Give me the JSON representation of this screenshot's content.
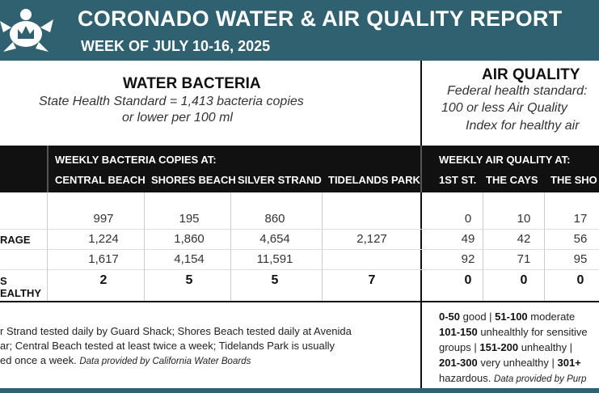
{
  "header": {
    "title": "CORONADO WATER & AIR QUALITY REPORT",
    "subtitle": "WEEK OF JULY 10-16, 2025"
  },
  "water": {
    "title": "WATER BACTERIA",
    "standard": [
      "State Health Standard  = 1,413 bacteria copies",
      "or lower per 100 ml"
    ]
  },
  "air": {
    "title": "AIR QUALITY",
    "standard": [
      "Federal health standard:",
      "100 or less Air Quality",
      "Index for healthy air"
    ]
  },
  "table": {
    "water_header": "WEEKLY BACTERIA COPIES AT:",
    "air_header": "WEEKLY AIR QUALITY AT:",
    "water_columns": [
      "CENTRAL BEACH",
      "SHORES BEACH",
      "SILVER STRAND",
      "TIDELANDS PARK"
    ],
    "air_columns": [
      "1ST ST.",
      "THE CAYS",
      "THE SHO"
    ],
    "row_labels": [
      null,
      "RAGE",
      null,
      "S EALTHY"
    ],
    "rows": [
      [
        "997",
        "195",
        "860",
        null,
        "0",
        "10",
        "17"
      ],
      [
        "1,224",
        "1,860",
        "4,654",
        "2,127",
        "49",
        "42",
        "56"
      ],
      [
        "1,617",
        "4,154",
        "11,591",
        null,
        "92",
        "71",
        "95"
      ],
      [
        "2",
        "5",
        "5",
        "7",
        "0",
        "0",
        "0"
      ]
    ]
  },
  "footnotes": {
    "water": [
      [
        "r Strand tested daily by Guard Shack; Shores Beach tested daily at Avenida"
      ],
      [
        "ar; Central Beach tested at least twice a week; Tidelands Park is usually"
      ],
      [
        "ed once a week.",
        "Data provided by California Water Boards"
      ]
    ],
    "air": [
      [
        "0-50",
        " good | ",
        "51-100",
        " moderate"
      ],
      [
        "101-150",
        " unhealthly for sensitive"
      ],
      [
        "groups | ",
        "151-200",
        " unhealthy |"
      ],
      [
        "201-300",
        " very unhealthy | ",
        "301+"
      ],
      [
        "hazardous.",
        "Data provided by Purp"
      ]
    ]
  }
}
